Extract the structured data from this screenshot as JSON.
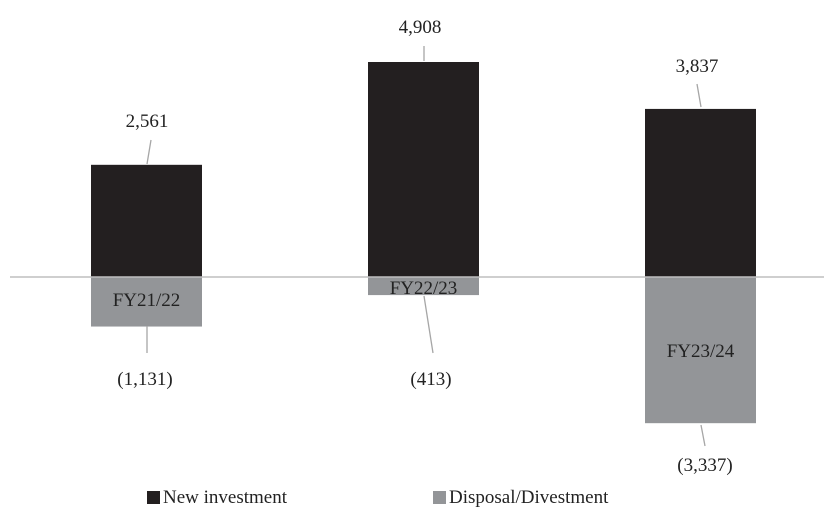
{
  "chart_data": {
    "type": "bar",
    "stacked": true,
    "categories": [
      "FY21/22",
      "FY22/23",
      "FY23/24"
    ],
    "series": [
      {
        "name": "New investment",
        "values": [
          2561,
          4908,
          3837
        ],
        "labels": [
          "2,561",
          "4,908",
          "3,837"
        ],
        "color": "#231f20"
      },
      {
        "name": "Disposal/Divestment",
        "values": [
          -1131,
          -413,
          -3337
        ],
        "labels": [
          "(1,131)",
          "(413)",
          "(3,337)"
        ],
        "color": "#939598"
      }
    ],
    "grid": false,
    "legend_position": "bottom",
    "axis_color": "#bfbfbf",
    "ylim": [
      -3500,
      6000
    ]
  }
}
